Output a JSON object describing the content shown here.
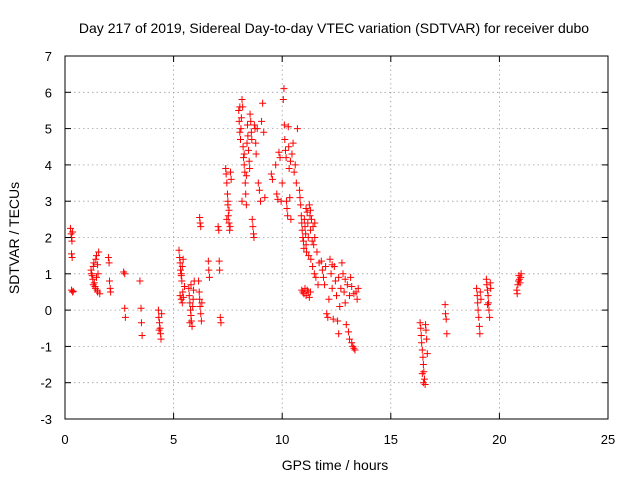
{
  "chart_data": {
    "type": "scatter",
    "title": "Day 217 of 2019, Sidereal Day-to-day VTEC variation (SDTVAR) for receiver dubo",
    "xlabel": "GPS time / hours",
    "ylabel": "SDTVAR / TECUs",
    "xlim": [
      0,
      25
    ],
    "ylim": [
      -3,
      7
    ],
    "xticks": [
      "0",
      "5",
      "10",
      "15",
      "20",
      "25"
    ],
    "yticks": [
      "-3",
      "-2",
      "-1",
      "0",
      "1",
      "2",
      "3",
      "4",
      "5",
      "6",
      "7"
    ],
    "grid": true,
    "marker": "plus",
    "color": "#ff0000",
    "series": [
      {
        "name": "SDTVAR",
        "points": [
          [
            0.25,
            2.25
          ],
          [
            0.28,
            2.1
          ],
          [
            0.3,
            2.0
          ],
          [
            0.32,
            1.9
          ],
          [
            0.35,
            2.15
          ],
          [
            0.3,
            1.55
          ],
          [
            0.33,
            1.45
          ],
          [
            0.3,
            0.55
          ],
          [
            0.35,
            0.5
          ],
          [
            0.38,
            0.52
          ],
          [
            1.2,
            1.1
          ],
          [
            1.22,
            1.0
          ],
          [
            1.25,
            0.95
          ],
          [
            1.28,
            0.85
          ],
          [
            1.3,
            1.2
          ],
          [
            1.33,
            1.3
          ],
          [
            1.35,
            0.75
          ],
          [
            1.38,
            0.65
          ],
          [
            1.4,
            0.6
          ],
          [
            1.42,
            1.4
          ],
          [
            1.45,
            1.5
          ],
          [
            1.48,
            0.55
          ],
          [
            1.5,
            0.5
          ],
          [
            1.52,
            1.0
          ],
          [
            1.55,
            1.6
          ],
          [
            1.5,
            1.25
          ],
          [
            1.45,
            0.9
          ],
          [
            1.3,
            0.7
          ],
          [
            1.6,
            0.45
          ],
          [
            2.0,
            1.45
          ],
          [
            2.03,
            1.3
          ],
          [
            2.05,
            0.8
          ],
          [
            2.08,
            0.6
          ],
          [
            2.1,
            0.5
          ],
          [
            2.7,
            1.05
          ],
          [
            2.75,
            1.0
          ],
          [
            2.75,
            0.05
          ],
          [
            2.78,
            -0.2
          ],
          [
            3.45,
            0.8
          ],
          [
            3.5,
            0.05
          ],
          [
            3.52,
            -0.35
          ],
          [
            3.55,
            -0.7
          ],
          [
            4.3,
            0.0
          ],
          [
            4.32,
            -0.2
          ],
          [
            4.35,
            -0.35
          ],
          [
            4.38,
            -0.5
          ],
          [
            4.4,
            -0.65
          ],
          [
            4.42,
            -0.8
          ],
          [
            4.45,
            -0.1
          ],
          [
            4.33,
            -0.55
          ],
          [
            5.25,
            1.65
          ],
          [
            5.28,
            1.45
          ],
          [
            5.3,
            1.3
          ],
          [
            5.32,
            1.1
          ],
          [
            5.35,
            0.95
          ],
          [
            5.38,
            0.8
          ],
          [
            5.4,
            1.2
          ],
          [
            5.3,
            0.4
          ],
          [
            5.35,
            0.3
          ],
          [
            5.4,
            0.2
          ],
          [
            5.45,
            0.35
          ],
          [
            5.5,
            0.65
          ],
          [
            5.42,
            0.5
          ],
          [
            5.36,
            1.0
          ],
          [
            5.44,
            1.4
          ],
          [
            5.7,
            0.6
          ],
          [
            5.72,
            0.4
          ],
          [
            5.75,
            0.2
          ],
          [
            5.78,
            0.0
          ],
          [
            5.8,
            -0.15
          ],
          [
            5.82,
            -0.3
          ],
          [
            5.85,
            -0.45
          ],
          [
            5.88,
            0.1
          ],
          [
            5.9,
            0.3
          ],
          [
            5.92,
            0.55
          ],
          [
            5.95,
            0.8
          ],
          [
            5.75,
            -0.35
          ],
          [
            5.8,
            0.7
          ],
          [
            6.15,
            0.8
          ],
          [
            6.18,
            0.5
          ],
          [
            6.2,
            0.3
          ],
          [
            6.22,
            0.1
          ],
          [
            6.25,
            -0.1
          ],
          [
            6.28,
            -0.3
          ],
          [
            6.3,
            0.2
          ],
          [
            6.2,
            2.55
          ],
          [
            6.22,
            2.4
          ],
          [
            6.25,
            2.3
          ],
          [
            6.6,
            1.35
          ],
          [
            6.62,
            1.1
          ],
          [
            6.65,
            0.9
          ],
          [
            7.05,
            2.3
          ],
          [
            7.08,
            2.2
          ],
          [
            7.1,
            1.35
          ],
          [
            7.12,
            1.1
          ],
          [
            7.15,
            -0.2
          ],
          [
            7.18,
            -0.35
          ],
          [
            7.4,
            3.9
          ],
          [
            7.42,
            3.75
          ],
          [
            7.45,
            3.5
          ],
          [
            7.48,
            3.2
          ],
          [
            7.5,
            2.9
          ],
          [
            7.52,
            2.6
          ],
          [
            7.55,
            2.4
          ],
          [
            7.58,
            2.2
          ],
          [
            7.5,
            3.0
          ],
          [
            7.6,
            2.3
          ],
          [
            7.62,
            3.8
          ],
          [
            7.65,
            3.6
          ],
          [
            7.55,
            2.75
          ],
          [
            7.45,
            2.5
          ],
          [
            8.0,
            5.5
          ],
          [
            8.02,
            5.2
          ],
          [
            8.05,
            4.9
          ],
          [
            8.08,
            4.7
          ],
          [
            8.1,
            5.0
          ],
          [
            8.12,
            5.3
          ],
          [
            8.15,
            5.8
          ],
          [
            8.18,
            5.6
          ],
          [
            8.2,
            4.5
          ],
          [
            8.22,
            4.2
          ],
          [
            8.25,
            4.0
          ],
          [
            8.28,
            3.8
          ],
          [
            8.3,
            3.5
          ],
          [
            8.32,
            3.2
          ],
          [
            8.35,
            2.9
          ],
          [
            8.38,
            4.6
          ],
          [
            8.4,
            5.1
          ],
          [
            8.42,
            4.8
          ],
          [
            8.45,
            4.4
          ],
          [
            8.48,
            4.1
          ],
          [
            8.5,
            3.9
          ],
          [
            8.52,
            5.4
          ],
          [
            8.55,
            5.2
          ],
          [
            8.58,
            4.9
          ],
          [
            8.6,
            4.7
          ],
          [
            8.62,
            2.5
          ],
          [
            8.65,
            2.3
          ],
          [
            8.68,
            2.1
          ],
          [
            8.7,
            2.0
          ],
          [
            8.72,
            5.1
          ],
          [
            8.75,
            5.0
          ],
          [
            8.78,
            4.6
          ],
          [
            8.8,
            4.3
          ],
          [
            8.85,
            5.0
          ],
          [
            8.9,
            3.5
          ],
          [
            8.95,
            3.3
          ],
          [
            9.0,
            3.0
          ],
          [
            9.05,
            5.2
          ],
          [
            9.1,
            5.7
          ],
          [
            9.2,
            3.1
          ],
          [
            9.15,
            4.9
          ],
          [
            8.15,
            3.0
          ],
          [
            8.25,
            4.3
          ],
          [
            8.35,
            3.7
          ],
          [
            8.05,
            5.6
          ],
          [
            9.5,
            3.75
          ],
          [
            9.55,
            3.6
          ],
          [
            9.7,
            4.0
          ],
          [
            9.75,
            3.2
          ],
          [
            9.8,
            3.05
          ],
          [
            9.85,
            4.35
          ],
          [
            9.9,
            4.2
          ],
          [
            9.95,
            3.0
          ],
          [
            10.0,
            3.5
          ],
          [
            10.05,
            5.8
          ],
          [
            10.08,
            6.1
          ],
          [
            10.1,
            5.1
          ],
          [
            10.12,
            4.7
          ],
          [
            10.15,
            4.4
          ],
          [
            10.18,
            4.2
          ],
          [
            10.2,
            3.0
          ],
          [
            10.22,
            2.8
          ],
          [
            10.25,
            2.6
          ],
          [
            10.28,
            5.05
          ],
          [
            10.3,
            4.5
          ],
          [
            10.32,
            3.9
          ],
          [
            10.35,
            3.1
          ],
          [
            10.38,
            4.1
          ],
          [
            10.4,
            2.5
          ],
          [
            10.45,
            4.3
          ],
          [
            10.5,
            4.6
          ],
          [
            10.55,
            3.8
          ],
          [
            10.6,
            4.0
          ],
          [
            10.65,
            3.5
          ],
          [
            10.7,
            5.0
          ],
          [
            10.8,
            3.3
          ],
          [
            10.82,
            3.1
          ],
          [
            10.85,
            2.9
          ],
          [
            10.88,
            2.6
          ],
          [
            10.9,
            2.4
          ],
          [
            10.92,
            2.2
          ],
          [
            10.95,
            2.0
          ],
          [
            10.98,
            1.9
          ],
          [
            11.0,
            1.7
          ],
          [
            11.02,
            2.5
          ],
          [
            11.05,
            2.3
          ],
          [
            11.08,
            2.1
          ],
          [
            11.1,
            1.8
          ],
          [
            11.12,
            1.6
          ],
          [
            11.15,
            2.7
          ],
          [
            11.18,
            2.4
          ],
          [
            11.2,
            2.0
          ],
          [
            11.22,
            1.5
          ],
          [
            11.25,
            2.9
          ],
          [
            11.28,
            2.6
          ],
          [
            11.3,
            2.2
          ],
          [
            11.32,
            1.4
          ],
          [
            11.35,
            2.5
          ],
          [
            11.38,
            1.9
          ],
          [
            11.4,
            1.2
          ],
          [
            11.42,
            2.3
          ],
          [
            11.45,
            1.8
          ],
          [
            11.48,
            1.0
          ],
          [
            11.5,
            2.0
          ],
          [
            11.55,
            0.9
          ],
          [
            11.6,
            1.6
          ],
          [
            11.65,
            0.7
          ],
          [
            11.7,
            1.3
          ],
          [
            11.1,
            2.8
          ],
          [
            11.3,
            2.75
          ],
          [
            11.5,
            2.4
          ],
          [
            10.9,
            0.55
          ],
          [
            10.95,
            0.5
          ],
          [
            11.0,
            0.45
          ],
          [
            11.05,
            0.6
          ],
          [
            11.1,
            0.4
          ],
          [
            11.15,
            0.55
          ],
          [
            11.2,
            0.5
          ],
          [
            11.25,
            0.35
          ],
          [
            11.3,
            0.5
          ],
          [
            11.8,
            1.35
          ],
          [
            11.85,
            1.1
          ],
          [
            11.9,
            0.9
          ],
          [
            11.95,
            0.7
          ],
          [
            12.0,
            1.2
          ],
          [
            12.05,
            -0.1
          ],
          [
            12.1,
            -0.2
          ],
          [
            12.15,
            0.3
          ],
          [
            12.2,
            1.4
          ],
          [
            12.25,
            1.0
          ],
          [
            12.3,
            0.6
          ],
          [
            12.35,
            -0.25
          ],
          [
            12.4,
            1.2
          ],
          [
            12.45,
            0.8
          ],
          [
            12.5,
            0.4
          ],
          [
            12.55,
            -0.3
          ],
          [
            12.6,
            -0.65
          ],
          [
            12.65,
            0.1
          ],
          [
            12.7,
            0.6
          ],
          [
            12.75,
            1.3
          ],
          [
            12.8,
            1.0
          ],
          [
            12.85,
            0.5
          ],
          [
            12.9,
            0.2
          ],
          [
            12.95,
            -0.4
          ],
          [
            13.0,
            0.7
          ],
          [
            13.05,
            -0.6
          ],
          [
            13.1,
            -0.8
          ],
          [
            13.15,
            0.9
          ],
          [
            13.2,
            -0.9
          ],
          [
            13.25,
            -1.0
          ],
          [
            13.3,
            -1.05
          ],
          [
            13.35,
            -1.1
          ],
          [
            13.4,
            0.5
          ],
          [
            13.45,
            0.3
          ],
          [
            13.5,
            0.6
          ],
          [
            12.3,
            1.25
          ],
          [
            12.6,
            0.9
          ],
          [
            12.9,
            0.85
          ],
          [
            13.1,
            0.4
          ],
          [
            13.2,
            0.65
          ],
          [
            13.3,
            0.45
          ],
          [
            16.35,
            -0.35
          ],
          [
            16.38,
            -0.5
          ],
          [
            16.4,
            -0.7
          ],
          [
            16.42,
            -0.9
          ],
          [
            16.45,
            -1.1
          ],
          [
            16.48,
            -1.3
          ],
          [
            16.5,
            -1.5
          ],
          [
            16.52,
            -1.7
          ],
          [
            16.55,
            -1.9
          ],
          [
            16.58,
            -2.05
          ],
          [
            16.6,
            -0.4
          ],
          [
            16.62,
            -0.55
          ],
          [
            16.65,
            -0.8
          ],
          [
            16.68,
            -1.2
          ],
          [
            16.45,
            -1.75
          ],
          [
            16.5,
            -2.0
          ],
          [
            17.5,
            0.15
          ],
          [
            17.52,
            -0.1
          ],
          [
            17.55,
            -0.25
          ],
          [
            17.58,
            -0.65
          ],
          [
            18.95,
            0.6
          ],
          [
            18.98,
            0.4
          ],
          [
            19.0,
            0.2
          ],
          [
            19.02,
            0.0
          ],
          [
            19.05,
            -0.2
          ],
          [
            19.08,
            -0.45
          ],
          [
            19.1,
            -0.65
          ],
          [
            19.12,
            0.5
          ],
          [
            19.15,
            0.3
          ],
          [
            19.4,
            0.85
          ],
          [
            19.42,
            0.7
          ],
          [
            19.45,
            0.55
          ],
          [
            19.48,
            0.4
          ],
          [
            19.5,
            0.2
          ],
          [
            19.52,
            0.0
          ],
          [
            19.55,
            -0.2
          ],
          [
            19.58,
            0.75
          ],
          [
            19.6,
            0.6
          ],
          [
            19.45,
            0.15
          ],
          [
            20.8,
            0.55
          ],
          [
            20.82,
            0.45
          ],
          [
            20.85,
            0.7
          ],
          [
            20.88,
            0.8
          ],
          [
            20.9,
            0.95
          ],
          [
            20.92,
            0.85
          ],
          [
            20.95,
            0.75
          ],
          [
            20.98,
            0.9
          ],
          [
            21.0,
            1.0
          ]
        ]
      }
    ]
  }
}
